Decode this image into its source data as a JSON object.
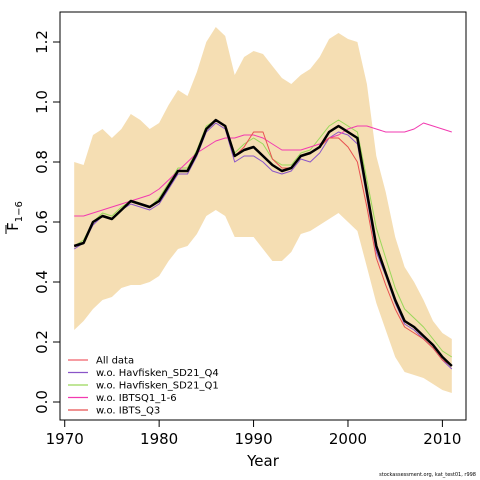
{
  "chart_data": {
    "type": "line",
    "xlabel": "Year",
    "ylabel_main": "F",
    "ylabel_sub": "1−6",
    "xlim": [
      1969.5,
      2012.5
    ],
    "ylim": [
      -0.06,
      1.3
    ],
    "xticks": [
      1970,
      1980,
      1990,
      2000,
      2010
    ],
    "xtick_labels": [
      "1970",
      "1980",
      "1990",
      "2000",
      "2010"
    ],
    "yticks": [
      0.0,
      0.2,
      0.4,
      0.6,
      0.8,
      1.0,
      1.2
    ],
    "ytick_labels": [
      "0.0",
      "0.2",
      "0.4",
      "0.6",
      "0.8",
      "1.0",
      "1.2"
    ],
    "grid": false,
    "legend_position": "bottom-left",
    "footer": "stockassessment.org, kat_test01, r998",
    "band_color": "#f5deb3",
    "band": {
      "x": [
        1971,
        1972,
        1973,
        1974,
        1975,
        1976,
        1977,
        1978,
        1979,
        1980,
        1981,
        1982,
        1983,
        1984,
        1985,
        1986,
        1987,
        1988,
        1989,
        1990,
        1991,
        1992,
        1993,
        1994,
        1995,
        1996,
        1997,
        1998,
        1999,
        2000,
        2001,
        2002,
        2003,
        2004,
        2005,
        2006,
        2007,
        2008,
        2009,
        2010,
        2011
      ],
      "lower": [
        0.24,
        0.27,
        0.31,
        0.34,
        0.35,
        0.38,
        0.39,
        0.39,
        0.4,
        0.42,
        0.47,
        0.51,
        0.52,
        0.56,
        0.62,
        0.64,
        0.62,
        0.55,
        0.55,
        0.55,
        0.51,
        0.47,
        0.47,
        0.5,
        0.56,
        0.57,
        0.59,
        0.61,
        0.63,
        0.6,
        0.57,
        0.45,
        0.33,
        0.24,
        0.15,
        0.1,
        0.09,
        0.08,
        0.06,
        0.04,
        0.03
      ],
      "upper": [
        0.8,
        0.79,
        0.89,
        0.91,
        0.88,
        0.91,
        0.96,
        0.94,
        0.91,
        0.93,
        0.99,
        1.04,
        1.02,
        1.1,
        1.2,
        1.25,
        1.22,
        1.09,
        1.15,
        1.17,
        1.16,
        1.12,
        1.08,
        1.06,
        1.09,
        1.11,
        1.15,
        1.21,
        1.23,
        1.21,
        1.2,
        1.06,
        0.82,
        0.7,
        0.55,
        0.45,
        0.4,
        0.34,
        0.27,
        0.23,
        0.21
      ]
    },
    "series": [
      {
        "name": "",
        "color": "#000000",
        "width": 2.5,
        "values": [
          0.52,
          0.53,
          0.6,
          0.62,
          0.61,
          0.64,
          0.67,
          0.66,
          0.65,
          0.67,
          0.72,
          0.77,
          0.77,
          0.83,
          0.91,
          0.94,
          0.92,
          0.82,
          0.84,
          0.85,
          0.82,
          0.79,
          0.77,
          0.78,
          0.82,
          0.83,
          0.85,
          0.9,
          0.92,
          0.9,
          0.88,
          0.7,
          0.52,
          0.43,
          0.34,
          0.27,
          0.25,
          0.22,
          0.19,
          0.15,
          0.12
        ]
      },
      {
        "name": "All data",
        "color": "#f0626a",
        "width": 1,
        "values": [
          0.52,
          0.53,
          0.6,
          0.62,
          0.61,
          0.64,
          0.67,
          0.66,
          0.65,
          0.67,
          0.72,
          0.77,
          0.77,
          0.83,
          0.91,
          0.94,
          0.92,
          0.82,
          0.84,
          0.85,
          0.82,
          0.79,
          0.77,
          0.78,
          0.82,
          0.83,
          0.85,
          0.9,
          0.92,
          0.9,
          0.88,
          0.7,
          0.52,
          0.43,
          0.34,
          0.27,
          0.25,
          0.22,
          0.19,
          0.15,
          0.12
        ]
      },
      {
        "name": "w.o. Havfisken_SD21_Q4",
        "color": "#8a55c8",
        "width": 1,
        "values": [
          0.51,
          0.53,
          0.59,
          0.62,
          0.61,
          0.64,
          0.66,
          0.65,
          0.64,
          0.66,
          0.71,
          0.76,
          0.76,
          0.82,
          0.9,
          0.93,
          0.91,
          0.8,
          0.82,
          0.82,
          0.8,
          0.77,
          0.76,
          0.77,
          0.81,
          0.8,
          0.83,
          0.88,
          0.9,
          0.89,
          0.86,
          0.68,
          0.5,
          0.42,
          0.33,
          0.26,
          0.24,
          0.21,
          0.18,
          0.14,
          0.11
        ]
      },
      {
        "name": "w.o. Havfisken_SD21_Q1",
        "color": "#9ad85a",
        "width": 1,
        "values": [
          0.52,
          0.54,
          0.6,
          0.63,
          0.62,
          0.65,
          0.67,
          0.66,
          0.65,
          0.68,
          0.73,
          0.78,
          0.78,
          0.84,
          0.92,
          0.94,
          0.92,
          0.83,
          0.86,
          0.88,
          0.86,
          0.81,
          0.79,
          0.79,
          0.83,
          0.84,
          0.88,
          0.92,
          0.94,
          0.92,
          0.9,
          0.74,
          0.58,
          0.48,
          0.38,
          0.31,
          0.28,
          0.25,
          0.21,
          0.17,
          0.15
        ]
      },
      {
        "name": "w.o. IBTSQ1_1-6",
        "color": "#f23ab0",
        "width": 1,
        "values": [
          0.62,
          0.62,
          0.63,
          0.64,
          0.65,
          0.66,
          0.67,
          0.68,
          0.69,
          0.71,
          0.74,
          0.77,
          0.8,
          0.83,
          0.85,
          0.87,
          0.88,
          0.88,
          0.89,
          0.89,
          0.88,
          0.86,
          0.84,
          0.84,
          0.84,
          0.85,
          0.86,
          0.88,
          0.89,
          0.91,
          0.92,
          0.92,
          0.91,
          0.9,
          0.9,
          0.9,
          0.91,
          0.93,
          0.92,
          0.91,
          0.9
        ]
      },
      {
        "name": "w.o. IBTS_Q3",
        "color": "#e85050",
        "width": 1,
        "values": [
          0.52,
          0.53,
          0.6,
          0.62,
          0.61,
          0.64,
          0.67,
          0.66,
          0.65,
          0.67,
          0.72,
          0.77,
          0.77,
          0.83,
          0.91,
          0.94,
          0.92,
          0.82,
          0.85,
          0.9,
          0.9,
          0.81,
          0.78,
          0.78,
          0.82,
          0.83,
          0.85,
          0.88,
          0.88,
          0.85,
          0.8,
          0.65,
          0.48,
          0.39,
          0.31,
          0.25,
          0.23,
          0.21,
          0.18,
          0.14,
          0.12
        ]
      }
    ]
  }
}
